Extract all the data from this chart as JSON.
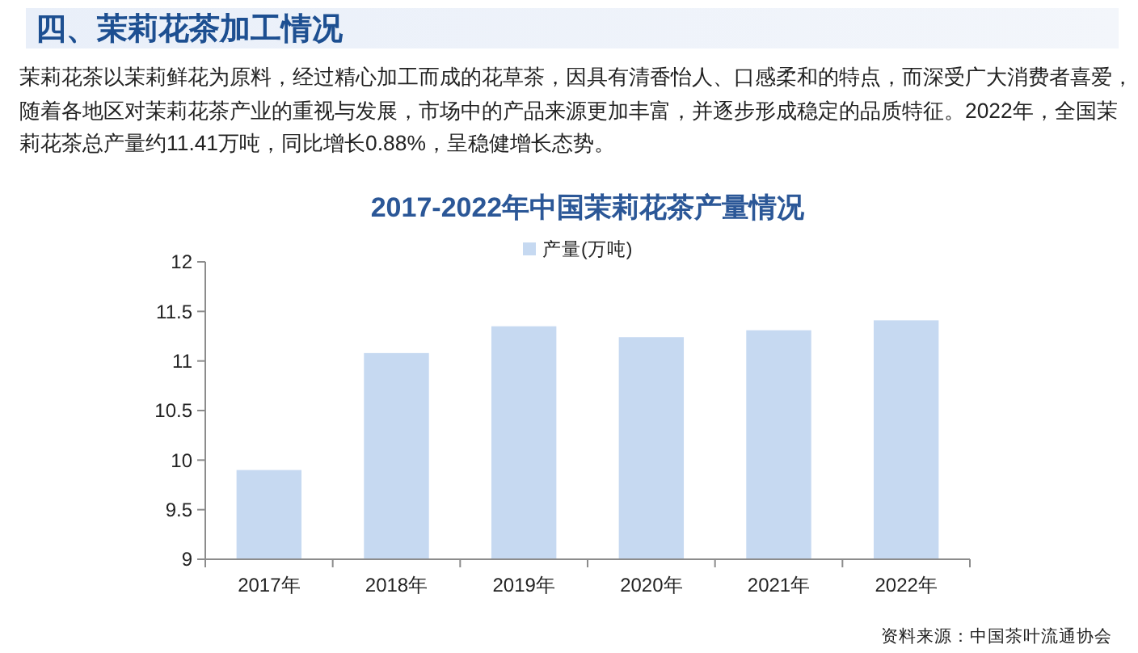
{
  "chart_data": {
    "type": "bar",
    "title": "2017-2022年中国茉莉花茶产量情况",
    "categories": [
      "2017年",
      "2018年",
      "2019年",
      "2020年",
      "2021年",
      "2022年"
    ],
    "series": [
      {
        "name": "产量(万吨)",
        "color": "#c6d9f1",
        "values": [
          9.9,
          11.08,
          11.35,
          11.24,
          11.31,
          11.41
        ]
      }
    ],
    "ylim": [
      9,
      12
    ],
    "yticks": [
      9,
      9.5,
      10,
      10.5,
      11,
      11.5,
      12
    ],
    "legend": "top",
    "annotations": [
      "四、茉莉花茶加工情况",
      "茉莉花茶以茉莉鲜花为原料，经过精心加工而成的花草茶，因具有清香怡人、口感柔和的特点，而深受广大消费者喜爱，随着各地区对茉莉花茶产业的重视与发展，市场中的产品来源更加丰富，并逐步形成稳定的品质特征。2022年，全国茉莉花茶总产量约11.41万吨，同比增长0.88%，呈稳健增长态势。",
      "资料来源：中国茶叶流通协会"
    ]
  }
}
